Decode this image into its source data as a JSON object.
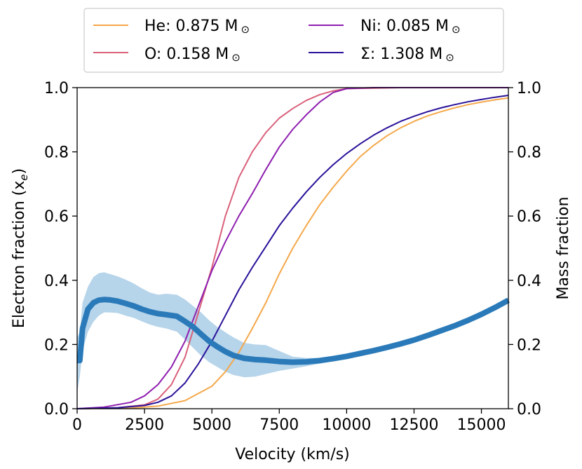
{
  "chart_data": {
    "type": "line",
    "xlabel": "Velocity (km/s)",
    "ylabel_left_main": "Electron fraction (x",
    "ylabel_left_sub": "e",
    "ylabel_left_close": ")",
    "ylabel_right": "Mass fraction",
    "xlim": [
      0,
      16000
    ],
    "ylim": [
      0.0,
      1.0
    ],
    "x_ticks": [
      0,
      2500,
      5000,
      7500,
      10000,
      12500,
      15000
    ],
    "x_tick_labels": [
      "0",
      "2500",
      "5000",
      "7500",
      "10000",
      "12500",
      "15000"
    ],
    "y_ticks": [
      0.0,
      0.2,
      0.4,
      0.6,
      0.8,
      1.0
    ],
    "y_tick_labels": [
      "0.0",
      "0.2",
      "0.4",
      "0.6",
      "0.8",
      "1.0"
    ],
    "legend": {
      "placement": "above-plot",
      "sun_symbol": "⊙",
      "entries": [
        {
          "key": "he",
          "text": "He: 0.875 M",
          "color": "#f5a84a"
        },
        {
          "key": "ni",
          "text": "Ni: 0.085 M",
          "color": "#8f1faf"
        },
        {
          "key": "o",
          "text": "O: 0.158 M",
          "color": "#d9607a"
        },
        {
          "key": "sigma",
          "text": "Σ: 1.308 M",
          "color": "#2a1199"
        }
      ]
    },
    "series": [
      {
        "name": "He",
        "color": "#f5a84a",
        "x": [
          0,
          2000,
          3000,
          4000,
          5000,
          5500,
          6000,
          6500,
          7000,
          7500,
          8000,
          8500,
          9000,
          9500,
          10000,
          10500,
          11000,
          11500,
          12000,
          12500,
          13000,
          13500,
          14000,
          14500,
          15000,
          15500,
          16000
        ],
        "y": [
          0.0,
          0.002,
          0.008,
          0.025,
          0.07,
          0.115,
          0.175,
          0.25,
          0.33,
          0.42,
          0.5,
          0.57,
          0.635,
          0.69,
          0.74,
          0.785,
          0.82,
          0.85,
          0.875,
          0.895,
          0.912,
          0.925,
          0.937,
          0.947,
          0.955,
          0.962,
          0.968
        ]
      },
      {
        "name": "O",
        "color": "#d9607a",
        "x": [
          0,
          1500,
          2500,
          3000,
          3500,
          4000,
          4500,
          5000,
          5500,
          6000,
          6500,
          7000,
          7500,
          8000,
          8500,
          9000,
          9500,
          10000,
          12000,
          16000
        ],
        "y": [
          0.0,
          0.003,
          0.012,
          0.03,
          0.075,
          0.16,
          0.3,
          0.44,
          0.6,
          0.72,
          0.8,
          0.86,
          0.905,
          0.935,
          0.96,
          0.978,
          0.99,
          0.997,
          1.0,
          1.0
        ]
      },
      {
        "name": "Ni",
        "color": "#8f1faf",
        "x": [
          0,
          1000,
          2000,
          2500,
          3000,
          3500,
          4000,
          4500,
          5000,
          5500,
          6000,
          6500,
          7000,
          7500,
          8000,
          8500,
          9000,
          9500,
          10000,
          11000,
          16000
        ],
        "y": [
          0.0,
          0.005,
          0.02,
          0.04,
          0.075,
          0.13,
          0.21,
          0.32,
          0.43,
          0.52,
          0.6,
          0.67,
          0.745,
          0.815,
          0.87,
          0.915,
          0.955,
          0.985,
          0.997,
          1.0,
          1.0
        ]
      },
      {
        "name": "Σ",
        "color": "#2a1199",
        "x": [
          0,
          1500,
          2500,
          3000,
          3500,
          4000,
          4500,
          5000,
          5500,
          6000,
          6500,
          7000,
          7500,
          8000,
          8500,
          9000,
          9500,
          10000,
          10500,
          11000,
          11500,
          12000,
          12500,
          13000,
          13500,
          14000,
          14500,
          15000,
          15500,
          16000
        ],
        "y": [
          0.0,
          0.003,
          0.01,
          0.02,
          0.04,
          0.08,
          0.14,
          0.21,
          0.29,
          0.37,
          0.44,
          0.505,
          0.57,
          0.625,
          0.675,
          0.72,
          0.76,
          0.795,
          0.825,
          0.852,
          0.875,
          0.895,
          0.911,
          0.925,
          0.937,
          0.947,
          0.956,
          0.963,
          0.97,
          0.976
        ]
      }
    ],
    "electron_fraction": {
      "color": "#2a7ab9",
      "band_color": "#a9cce6",
      "x": [
        0,
        100,
        200,
        400,
        600,
        800,
        1000,
        1200,
        1500,
        1800,
        2100,
        2400,
        2700,
        3000,
        3300,
        3700,
        4000,
        4300,
        4600,
        4900,
        5200,
        5500,
        5800,
        6200,
        6600,
        7000,
        7500,
        8000,
        8500,
        9000,
        9500,
        10000,
        10500,
        11000,
        11500,
        12000,
        12500,
        13000,
        13500,
        14000,
        14500,
        15000,
        15500,
        16000
      ],
      "mean": [
        0.15,
        0.15,
        0.25,
        0.31,
        0.33,
        0.338,
        0.34,
        0.339,
        0.335,
        0.328,
        0.32,
        0.31,
        0.302,
        0.296,
        0.293,
        0.288,
        0.272,
        0.255,
        0.232,
        0.21,
        0.193,
        0.178,
        0.166,
        0.157,
        0.153,
        0.151,
        0.147,
        0.145,
        0.146,
        0.15,
        0.156,
        0.163,
        0.172,
        0.181,
        0.191,
        0.202,
        0.214,
        0.228,
        0.243,
        0.258,
        0.275,
        0.294,
        0.315,
        0.338
      ],
      "lower": [
        0.05,
        0.1,
        0.18,
        0.24,
        0.27,
        0.29,
        0.3,
        0.3,
        0.298,
        0.29,
        0.283,
        0.272,
        0.262,
        0.255,
        0.25,
        0.24,
        0.215,
        0.19,
        0.165,
        0.145,
        0.13,
        0.115,
        0.105,
        0.098,
        0.1,
        0.108,
        0.118,
        0.125,
        0.132,
        0.14,
        0.148,
        0.157,
        0.166,
        0.176,
        0.186,
        0.197,
        0.209,
        0.222,
        0.237,
        0.252,
        0.269,
        0.288,
        0.309,
        0.332
      ],
      "upper": [
        0.22,
        0.24,
        0.33,
        0.38,
        0.41,
        0.422,
        0.425,
        0.42,
        0.412,
        0.402,
        0.39,
        0.375,
        0.362,
        0.355,
        0.358,
        0.355,
        0.34,
        0.32,
        0.3,
        0.275,
        0.255,
        0.238,
        0.222,
        0.205,
        0.2,
        0.198,
        0.18,
        0.162,
        0.158,
        0.158,
        0.163,
        0.17,
        0.178,
        0.187,
        0.197,
        0.208,
        0.22,
        0.234,
        0.249,
        0.264,
        0.281,
        0.3,
        0.321,
        0.345
      ]
    }
  }
}
